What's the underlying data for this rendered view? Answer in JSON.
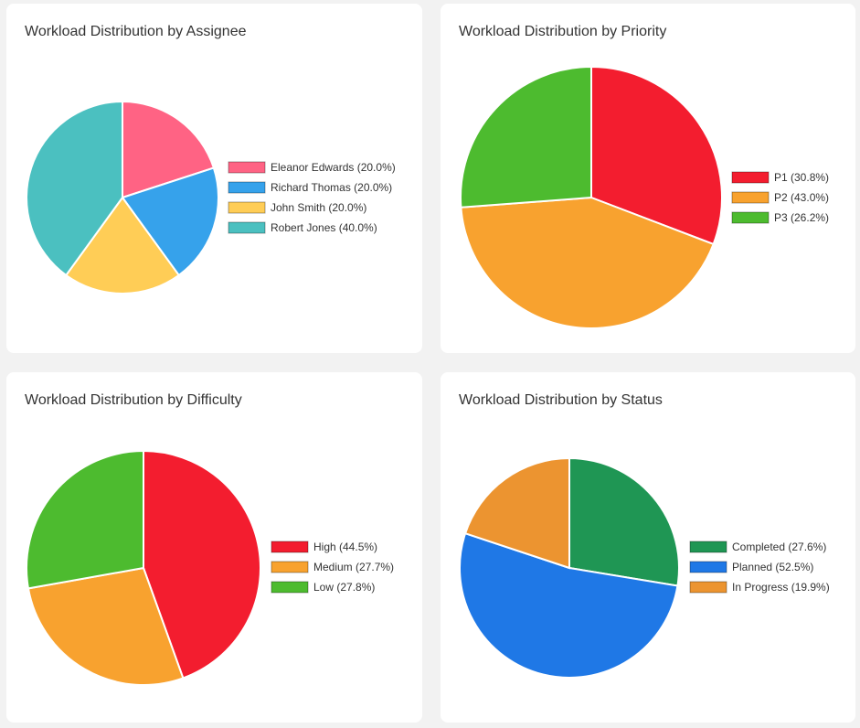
{
  "chart_data": [
    {
      "type": "pie",
      "title": "Workload Distribution by Assignee",
      "categories": [
        "Eleanor Edwards (20.0%)",
        "Richard Thomas (20.0%)",
        "John Smith (20.0%)",
        "Robert Jones (40.0%)"
      ],
      "values": [
        20.0,
        20.0,
        20.0,
        40.0
      ],
      "colors": [
        "#ff6384",
        "#36a2eb",
        "#ffcd56",
        "#4bc0c0"
      ],
      "legend": "right"
    },
    {
      "type": "pie",
      "title": "Workload Distribution by Priority",
      "categories": [
        "P1 (30.8%)",
        "P2 (43.0%)",
        "P3 (26.2%)"
      ],
      "values": [
        30.8,
        43.0,
        26.2
      ],
      "colors": [
        "#f31d2f",
        "#f8a22f",
        "#4dbb2f"
      ],
      "legend": "right"
    },
    {
      "type": "pie",
      "title": "Workload Distribution by Difficulty",
      "categories": [
        "High (44.5%)",
        "Medium (27.7%)",
        "Low (27.8%)"
      ],
      "values": [
        44.5,
        27.7,
        27.8
      ],
      "colors": [
        "#f31d2f",
        "#f8a22f",
        "#4dbb2f"
      ],
      "legend": "right"
    },
    {
      "type": "pie",
      "title": "Workload Distribution by Status",
      "categories": [
        "Completed (27.6%)",
        "Planned (52.5%)",
        "In Progress (19.9%)"
      ],
      "values": [
        27.6,
        52.5,
        19.9
      ],
      "colors": [
        "#1f9654",
        "#1f78e6",
        "#ec9430"
      ],
      "legend": "right"
    }
  ]
}
